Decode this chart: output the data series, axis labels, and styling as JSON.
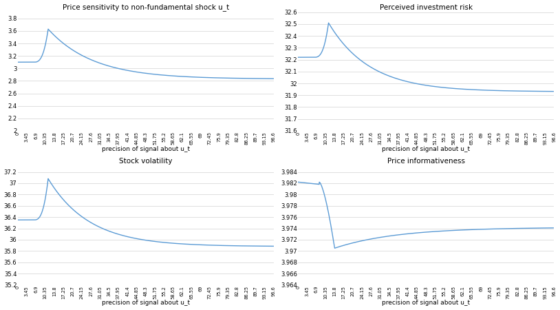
{
  "titles": [
    "Price sensitivity to non-fundamental shock u_t",
    "Perceived investment risk",
    "Stock volatility",
    "Price informativeness"
  ],
  "xlabel": "precision of signal about u_t",
  "line_color": "#5b9bd5",
  "background_color": "#ffffff",
  "grid_color": "#d9d9d9",
  "x_ticks": [
    0,
    3.45,
    6.9,
    10.35,
    13.8,
    17.25,
    20.7,
    24.15,
    27.6,
    31.05,
    34.5,
    37.95,
    41.4,
    44.85,
    48.3,
    51.75,
    55.2,
    58.65,
    62.1,
    65.55,
    69,
    72.45,
    75.9,
    79.35,
    82.8,
    86.25,
    89.7,
    93.15,
    96.6
  ],
  "panel1": {
    "ylim": [
      2.0,
      3.9
    ],
    "yticks": [
      2.0,
      2.2,
      2.4,
      2.6,
      2.8,
      3.0,
      3.2,
      3.4,
      3.6,
      3.8
    ],
    "start_val": 3.1,
    "flat_until": 6.0,
    "peak_x": 11.5,
    "peak_val": 3.63,
    "end_val": 2.83,
    "decay_sharpness": 5.0,
    "rise_power": 3.0
  },
  "panel2": {
    "ylim": [
      31.6,
      32.6
    ],
    "yticks": [
      31.6,
      31.7,
      31.8,
      31.9,
      32.0,
      32.1,
      32.2,
      32.3,
      32.4,
      32.5,
      32.6
    ],
    "start_val": 32.22,
    "flat_until": 6.0,
    "peak_x": 11.5,
    "peak_val": 32.51,
    "end_val": 31.93,
    "decay_sharpness": 5.5,
    "rise_power": 3.0
  },
  "panel3": {
    "ylim": [
      35.2,
      37.3
    ],
    "yticks": [
      35.2,
      35.4,
      35.6,
      35.8,
      36.0,
      36.2,
      36.4,
      36.6,
      36.8,
      37.0,
      37.2
    ],
    "start_val": 36.35,
    "flat_until": 6.0,
    "peak_x": 11.5,
    "peak_val": 37.08,
    "end_val": 35.88,
    "decay_sharpness": 5.5,
    "rise_power": 3.0
  },
  "panel4": {
    "ylim": [
      3.964,
      3.985
    ],
    "yticks": [
      3.964,
      3.966,
      3.968,
      3.97,
      3.972,
      3.974,
      3.976,
      3.978,
      3.98,
      3.982,
      3.984
    ],
    "start_val": 3.9822,
    "flat_until": 8.0,
    "drop_start": 9.0,
    "trough_x": 13.8,
    "trough_val": 3.9705,
    "end_val": 3.9742,
    "recovery_sharpness": 3.5
  }
}
